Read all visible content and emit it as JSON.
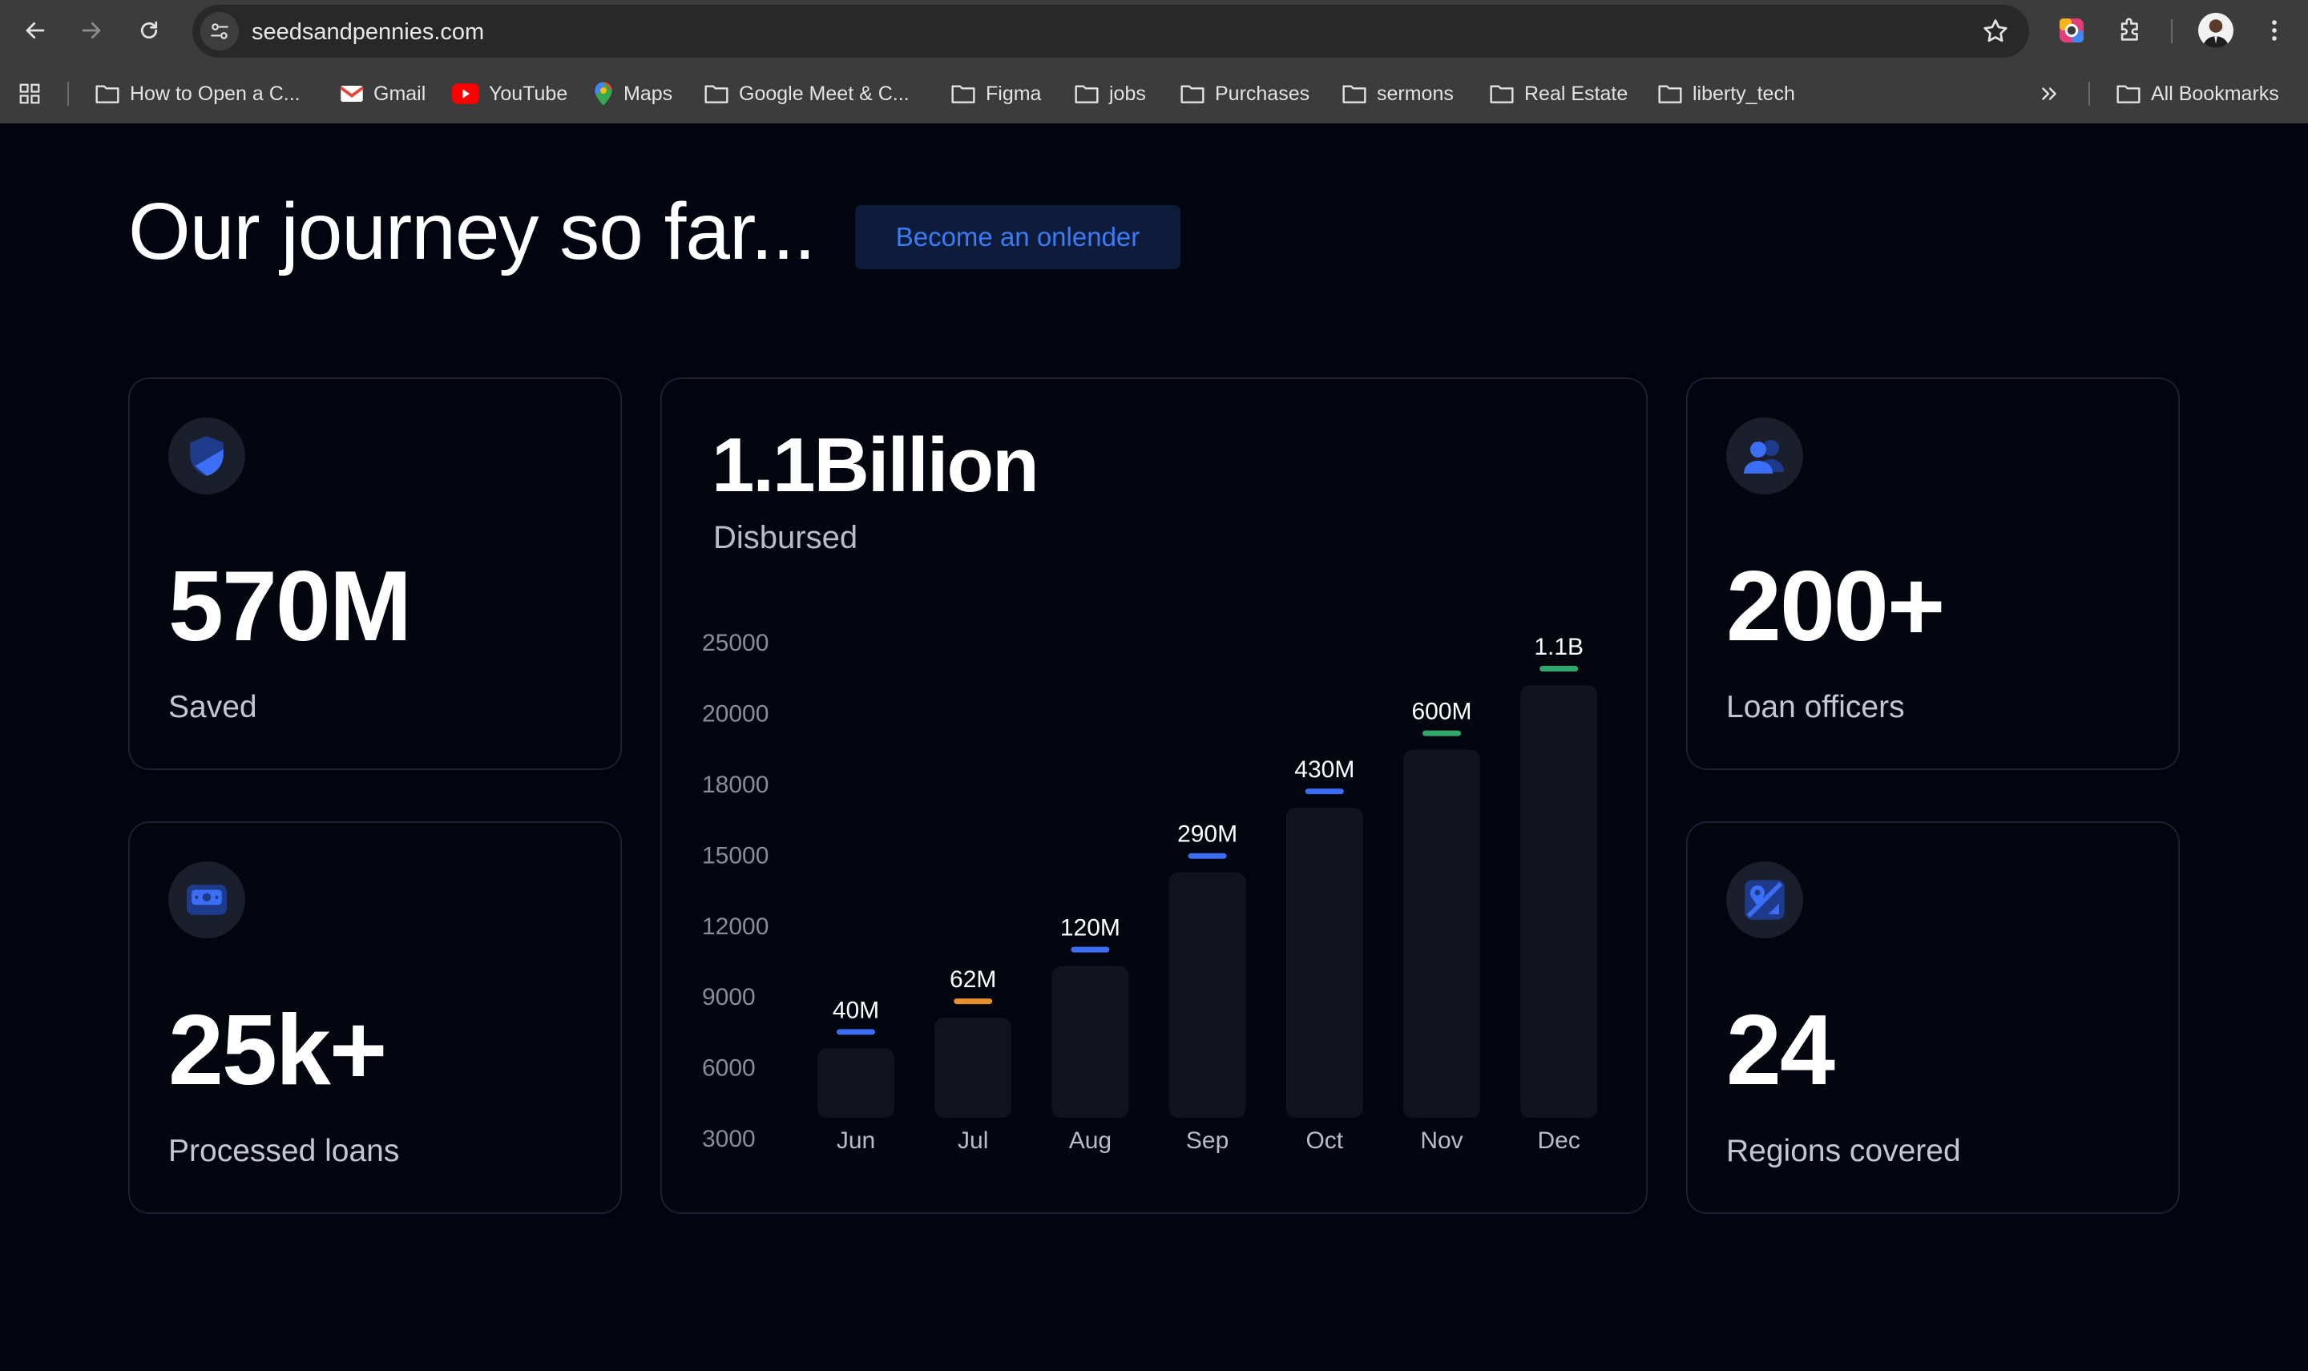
{
  "browser": {
    "url": "seedsandpennies.com",
    "bookmarks": [
      {
        "label": "How to Open a C...",
        "icon": "folder-icon"
      },
      {
        "label": "Gmail",
        "icon": "gmail-icon"
      },
      {
        "label": "YouTube",
        "icon": "youtube-icon"
      },
      {
        "label": "Maps",
        "icon": "maps-icon"
      },
      {
        "label": "Google Meet & C...",
        "icon": "folder-icon"
      },
      {
        "label": "Figma",
        "icon": "folder-icon"
      },
      {
        "label": "jobs",
        "icon": "folder-icon"
      },
      {
        "label": "Purchases",
        "icon": "folder-icon"
      },
      {
        "label": "sermons",
        "icon": "folder-icon"
      },
      {
        "label": "Real Estate",
        "icon": "folder-icon"
      },
      {
        "label": "liberty_tech",
        "icon": "folder-icon"
      }
    ],
    "all_bookmarks": "All Bookmarks"
  },
  "page": {
    "title": "Our journey so far...",
    "cta": "Become an onlender"
  },
  "stats": {
    "saved": {
      "value": "570M",
      "label": "Saved",
      "icon": "shield-icon"
    },
    "processed": {
      "value": "25k+",
      "label": "Processed loans",
      "icon": "wallet-icon"
    },
    "officers": {
      "value": "200+",
      "label": "Loan officers",
      "icon": "users-icon"
    },
    "regions": {
      "value": "24",
      "label": "Regions covered",
      "icon": "map-icon"
    }
  },
  "disbursed": {
    "value": "1.1Billion",
    "label": "Disbursed"
  },
  "chart_data": {
    "type": "bar",
    "categories": [
      "Jun",
      "Jul",
      "Aug",
      "Sep",
      "Oct",
      "Nov",
      "Dec"
    ],
    "values": [
      4300,
      6200,
      9400,
      15200,
      19200,
      22800,
      26800
    ],
    "data_labels": [
      "40M",
      "62M",
      "120M",
      "290M",
      "430M",
      "600M",
      "1.1B"
    ],
    "label_colors": [
      "#3b6df5",
      "#e8902f",
      "#3b6df5",
      "#3b6df5",
      "#3b6df5",
      "#2fa86b",
      "#2fa86b"
    ],
    "y_ticks": [
      "3000",
      "6000",
      "9000",
      "12000",
      "15000",
      "18000",
      "20000",
      "25000"
    ],
    "bar_color": "#12131f",
    "grid": false
  },
  "colors": {
    "background": "#02050f",
    "accent": "#3b7cf6",
    "card_border": "#1b2033"
  }
}
